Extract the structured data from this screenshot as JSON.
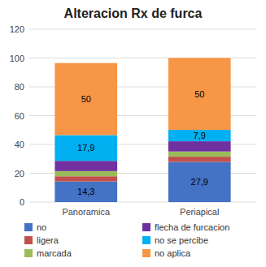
{
  "chart_data": {
    "type": "bar",
    "stacked": true,
    "title": "Alteracion Rx de furca",
    "categories": [
      "Panoramica",
      "Periapical"
    ],
    "series": [
      {
        "name": "no",
        "color": "#4472C4",
        "values": [
          14.3,
          27.9
        ],
        "value_labels": [
          "14,3",
          "27,9"
        ]
      },
      {
        "name": "ligera",
        "color": "#C0504D",
        "values": [
          3.6,
          3.6
        ]
      },
      {
        "name": "marcada",
        "color": "#9BBB59",
        "values": [
          3.6,
          3.6
        ]
      },
      {
        "name": "flecha de furcacion",
        "color": "#7030A0",
        "values": [
          7.1,
          7.1
        ]
      },
      {
        "name": "no se percibe",
        "color": "#00B0F0",
        "values": [
          17.9,
          7.9
        ],
        "value_labels": [
          "17,9",
          "7,9"
        ]
      },
      {
        "name": "no aplica",
        "color": "#F79646",
        "values": [
          50.0,
          50.0
        ],
        "value_labels": [
          "50",
          "50"
        ]
      }
    ],
    "ylim": [
      0,
      120
    ],
    "yticks": [
      0,
      20,
      40,
      60,
      80,
      100,
      120
    ],
    "grid": true,
    "legend": "bottom",
    "data_labels": true
  }
}
